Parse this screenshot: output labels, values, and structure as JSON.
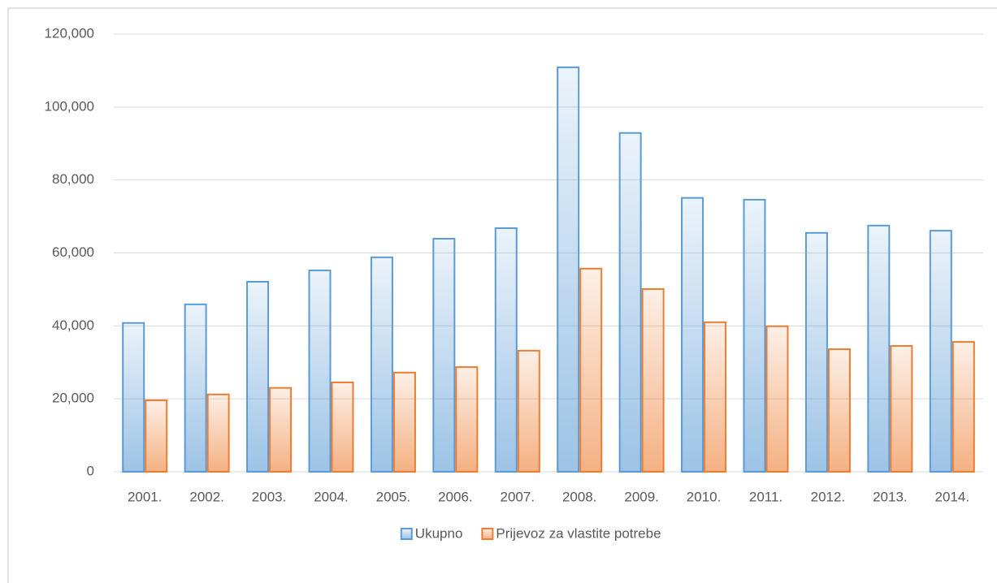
{
  "chart_data": {
    "type": "bar",
    "categories": [
      "2001.",
      "2002.",
      "2003.",
      "2004.",
      "2005.",
      "2006.",
      "2007.",
      "2008.",
      "2009.",
      "2010.",
      "2011.",
      "2012.",
      "2013.",
      "2014."
    ],
    "series": [
      {
        "name": "Ukupno",
        "color": "#5b9bd5",
        "values": [
          40800,
          45900,
          52100,
          55200,
          58800,
          63900,
          66800,
          110900,
          92900,
          75100,
          74600,
          65500,
          67500,
          66100
        ]
      },
      {
        "name": "Prijevoz za vlastite potrebe",
        "color": "#ed7d31",
        "values": [
          19600,
          21200,
          23000,
          24500,
          27200,
          28700,
          33200,
          55700,
          50100,
          41000,
          39900,
          33600,
          34500,
          35600
        ]
      }
    ],
    "ylim": [
      0,
      120000
    ],
    "yticks": [
      0,
      {
        "value": 20000,
        "label": "20,000"
      },
      {
        "value": 40000,
        "label": "40,000"
      },
      {
        "value": 60000,
        "label": "60,000"
      },
      {
        "value": 80000,
        "label": "80,000"
      },
      {
        "value": 100000,
        "label": "100,000"
      },
      {
        "value": 120000,
        "label": "120,000"
      }
    ],
    "grid": true,
    "legend": "bottom"
  }
}
